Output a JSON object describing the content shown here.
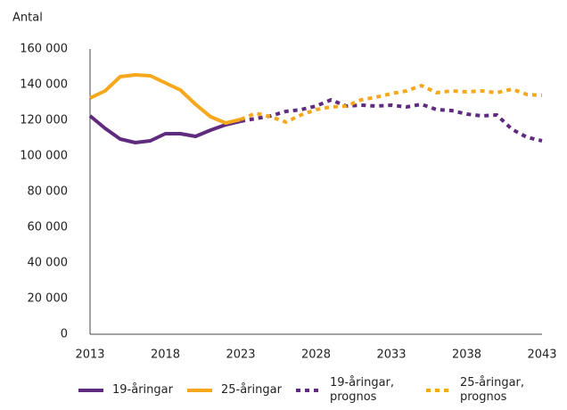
{
  "chart_data": {
    "type": "line",
    "y_label": "Antal",
    "x": [
      2013,
      2014,
      2015,
      2016,
      2017,
      2018,
      2019,
      2020,
      2021,
      2022,
      2023,
      2024,
      2025,
      2026,
      2027,
      2028,
      2029,
      2030,
      2031,
      2032,
      2033,
      2034,
      2035,
      2036,
      2037,
      2038,
      2039,
      2040,
      2041,
      2042,
      2043
    ],
    "xlim": [
      2013,
      2043
    ],
    "xticks": [
      2013,
      2018,
      2023,
      2028,
      2033,
      2038,
      2043
    ],
    "ylim": [
      0,
      160000
    ],
    "yticks": [
      0,
      {
        "value": 20000,
        "label": "20 000"
      },
      {
        "value": 40000,
        "label": "40 000"
      },
      {
        "value": 60000,
        "label": "60 000"
      },
      {
        "value": 80000,
        "label": "80 000"
      },
      {
        "value": 100000,
        "label": "100 000"
      },
      {
        "value": 120000,
        "label": "120 000"
      },
      {
        "value": 140000,
        "label": "140 000"
      },
      {
        "value": 160000,
        "label": "160 000"
      }
    ],
    "grid": false,
    "series": [
      {
        "name": "19-åringar",
        "color": "#5e2b7e",
        "style": "solid",
        "values": [
          122500,
          115500,
          109500,
          107500,
          108500,
          112500,
          112500,
          111000,
          114500,
          117500,
          119500,
          null,
          null,
          null,
          null,
          null,
          null,
          null,
          null,
          null,
          null,
          null,
          null,
          null,
          null,
          null,
          null,
          null,
          null,
          null,
          null
        ]
      },
      {
        "name": "25-åringar",
        "color": "#f5a81c",
        "style": "solid",
        "values": [
          132500,
          136500,
          144500,
          145500,
          145000,
          141000,
          137000,
          129000,
          122000,
          118500,
          120500,
          null,
          null,
          null,
          null,
          null,
          null,
          null,
          null,
          null,
          null,
          null,
          null,
          null,
          null,
          null,
          null,
          null,
          null,
          null,
          null
        ]
      },
      {
        "name": "19-åringar, prognos",
        "color": "#5e2b7e",
        "style": "dotted",
        "values": [
          null,
          null,
          null,
          null,
          null,
          null,
          null,
          null,
          null,
          null,
          119500,
          121000,
          122500,
          125000,
          126000,
          128000,
          131500,
          128000,
          128500,
          128000,
          128500,
          127500,
          129000,
          126000,
          125500,
          123500,
          122500,
          123000,
          115000,
          110500,
          108500
        ]
      },
      {
        "name": "25-åringar, prognos",
        "color": "#f5a81c",
        "style": "dotted",
        "values": [
          null,
          null,
          null,
          null,
          null,
          null,
          null,
          null,
          null,
          null,
          120500,
          124000,
          122000,
          119000,
          123000,
          126000,
          127500,
          128000,
          131500,
          133000,
          135000,
          136500,
          139500,
          135500,
          136500,
          136000,
          136500,
          135500,
          137500,
          134500,
          134000
        ]
      }
    ]
  }
}
